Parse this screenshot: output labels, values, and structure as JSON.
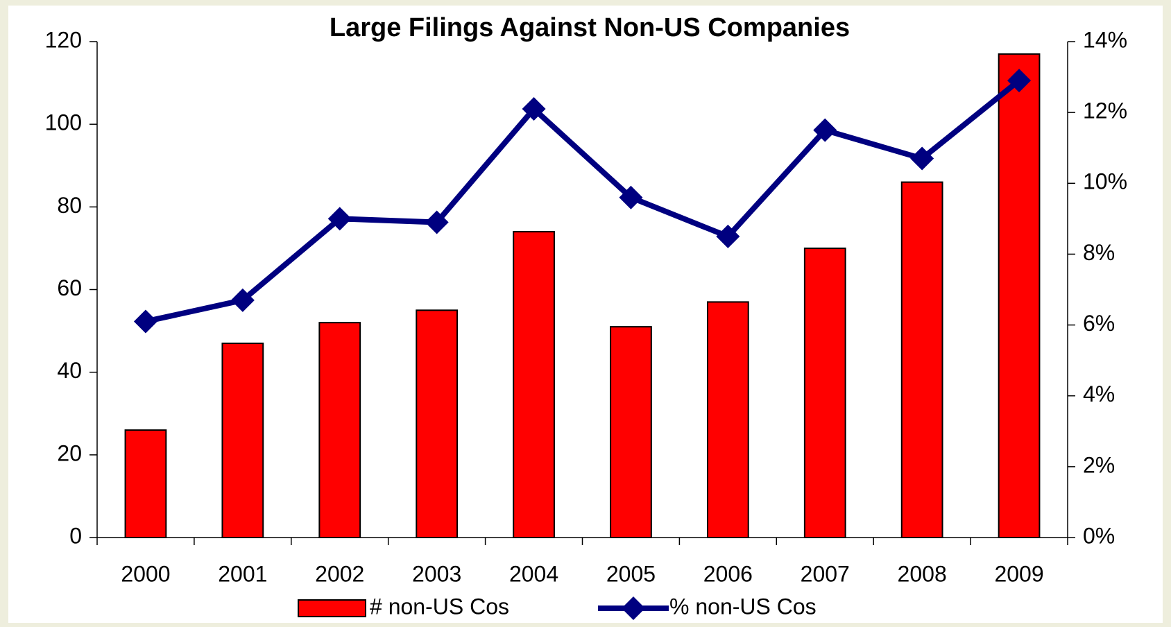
{
  "chart_data": {
    "type": "bar_line",
    "title": "Large Filings Against Non-US Companies",
    "categories": [
      "2000",
      "2001",
      "2002",
      "2003",
      "2004",
      "2005",
      "2006",
      "2007",
      "2008",
      "2009"
    ],
    "series": [
      {
        "name": "# non-US Cos",
        "type": "bar",
        "color": "#ff0000",
        "axis": "y",
        "values": [
          26,
          47,
          52,
          55,
          74,
          51,
          57,
          70,
          86,
          117
        ]
      },
      {
        "name": "% non-US Cos",
        "type": "line",
        "color": "#000080",
        "axis": "y2",
        "values": [
          6.1,
          6.7,
          9.0,
          8.9,
          12.1,
          9.6,
          8.5,
          11.5,
          10.7,
          12.9
        ]
      }
    ],
    "ylim": [
      0,
      120
    ],
    "yticks": [
      0,
      20,
      40,
      60,
      80,
      100,
      120
    ],
    "y2lim": [
      0,
      14
    ],
    "y2ticks": [
      {
        "value": 0,
        "label": "0%"
      },
      {
        "value": 2,
        "label": "2%"
      },
      {
        "value": 4,
        "label": "4%"
      },
      {
        "value": 6,
        "label": "6%"
      },
      {
        "value": 8,
        "label": "8%"
      },
      {
        "value": 10,
        "label": "10%"
      },
      {
        "value": 12,
        "label": "12%"
      },
      {
        "value": 14,
        "label": "14%"
      }
    ],
    "grid": false,
    "legend": "bottom"
  }
}
